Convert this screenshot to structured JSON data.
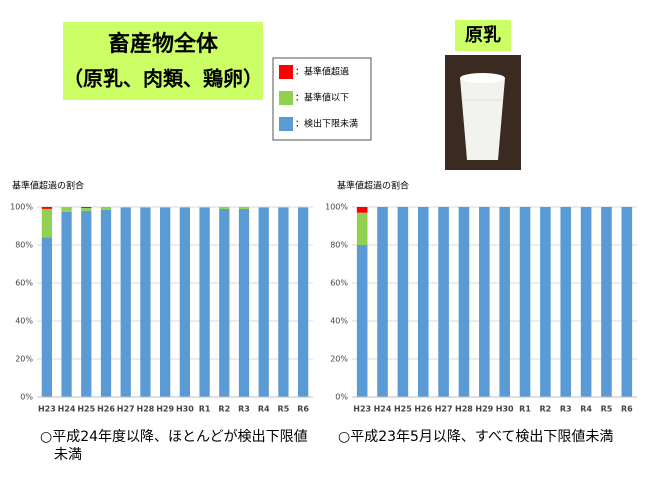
{
  "header": {
    "title": "畜産物全体",
    "subtitle": "（原乳、肉類、鶏卵）"
  },
  "photo_label": "原乳",
  "chart_data": [
    {
      "type": "stacked-bar",
      "y_label": "基準値超過の割合",
      "categories": [
        "H23",
        "H24",
        "H25",
        "H26",
        "H27",
        "H28",
        "H29",
        "H30",
        "R1",
        "R2",
        "R3",
        "R4",
        "R5",
        "R6"
      ],
      "series": [
        {
          "name": "：検出下限未満",
          "color": "#5b9bd5",
          "values": [
            84,
            97.5,
            98,
            98.5,
            99.5,
            99.5,
            99.5,
            99.5,
            99.5,
            99,
            99,
            99.5,
            99.5,
            99.5
          ]
        },
        {
          "name": "：基準値以下",
          "color": "#92d050",
          "values": [
            15,
            2.5,
            1.5,
            1.5,
            0.5,
            0.5,
            0.5,
            0.5,
            0.5,
            1,
            1,
            0.5,
            0.5,
            0.5
          ]
        },
        {
          "name": "：基準値超過",
          "color": "#ff0000",
          "values": [
            1,
            0,
            0.5,
            0,
            0,
            0,
            0,
            0,
            0,
            0,
            0,
            0,
            0,
            0
          ]
        }
      ],
      "ylim": [
        0,
        100
      ],
      "yticks": [
        {
          "value": 0,
          "label": "0%"
        },
        {
          "value": 20,
          "label": "20%"
        },
        {
          "value": 40,
          "label": "40%"
        },
        {
          "value": 60,
          "label": "60%"
        },
        {
          "value": 80,
          "label": "80%"
        },
        {
          "value": 100,
          "label": "100%"
        }
      ],
      "grid": true,
      "annotations": [
        "○平成24年度以降、ほとんどが検出下限値",
        "未満"
      ]
    },
    {
      "type": "stacked-bar",
      "y_label": "基準値超過の割合",
      "categories": [
        "H23",
        "H24",
        "H25",
        "H26",
        "H27",
        "H28",
        "H29",
        "H30",
        "R1",
        "R2",
        "R3",
        "R4",
        "R5",
        "R6"
      ],
      "series": [
        {
          "name": "：検出下限未満",
          "color": "#5b9bd5",
          "values": [
            80,
            100,
            100,
            100,
            100,
            100,
            100,
            100,
            100,
            100,
            100,
            100,
            100,
            100
          ]
        },
        {
          "name": "：基準値以下",
          "color": "#92d050",
          "values": [
            17,
            0,
            0,
            0,
            0,
            0,
            0,
            0,
            0,
            0,
            0,
            0,
            0,
            0
          ]
        },
        {
          "name": "：基準値超過",
          "color": "#ff0000",
          "values": [
            3,
            0,
            0,
            0,
            0,
            0,
            0,
            0,
            0,
            0,
            0,
            0,
            0,
            0
          ]
        }
      ],
      "ylim": [
        0,
        100
      ],
      "yticks": [
        {
          "value": 0,
          "label": "0%"
        },
        {
          "value": 20,
          "label": "20%"
        },
        {
          "value": 40,
          "label": "40%"
        },
        {
          "value": 60,
          "label": "60%"
        },
        {
          "value": 80,
          "label": "80%"
        },
        {
          "value": 100,
          "label": "100%"
        }
      ],
      "grid": true,
      "annotations": [
        "○平成23年5月以降、すべて検出下限値未満"
      ]
    }
  ]
}
